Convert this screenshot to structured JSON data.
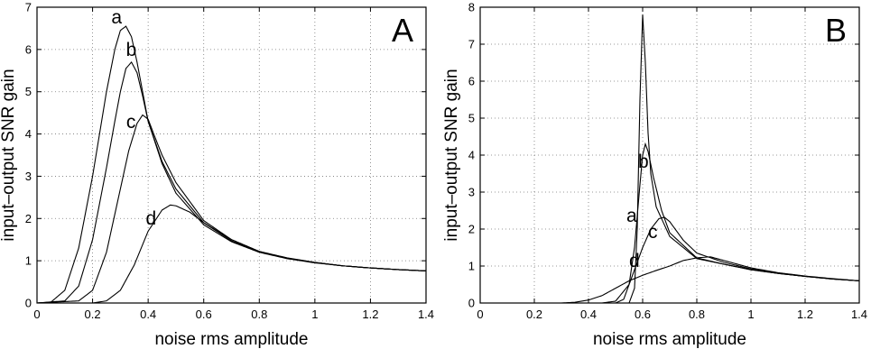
{
  "chart_data": [
    {
      "type": "line",
      "panel_letter": "A",
      "xlabel": "noise rms amplitude",
      "ylabel": "input–output SNR gain",
      "xlim": [
        0,
        1.4
      ],
      "ylim": [
        0,
        7
      ],
      "xticks": [
        "0",
        "0.2",
        "0.4",
        "0.6",
        "0.8",
        "1",
        "1.2",
        "1.4"
      ],
      "yticks": [
        "0",
        "1",
        "2",
        "3",
        "4",
        "5",
        "6",
        "7"
      ],
      "grid": true,
      "series": [
        {
          "name": "a",
          "x": [
            0,
            0.05,
            0.1,
            0.15,
            0.2,
            0.25,
            0.28,
            0.3,
            0.32,
            0.34,
            0.36,
            0.38,
            0.4,
            0.45,
            0.5,
            0.6,
            0.7,
            0.8,
            0.9,
            1.0,
            1.1,
            1.2,
            1.3,
            1.4
          ],
          "y": [
            0,
            0.02,
            0.3,
            1.3,
            3.0,
            5.0,
            6.0,
            6.45,
            6.55,
            6.3,
            5.7,
            5.0,
            4.3,
            3.3,
            2.6,
            1.85,
            1.45,
            1.2,
            1.05,
            0.95,
            0.88,
            0.83,
            0.79,
            0.76
          ]
        },
        {
          "name": "b",
          "x": [
            0,
            0.1,
            0.15,
            0.2,
            0.25,
            0.28,
            0.3,
            0.32,
            0.34,
            0.36,
            0.38,
            0.4,
            0.45,
            0.5,
            0.6,
            0.7,
            0.8,
            0.9,
            1.0,
            1.1,
            1.2,
            1.3,
            1.4
          ],
          "y": [
            0,
            0.05,
            0.4,
            1.5,
            3.2,
            4.3,
            5.0,
            5.55,
            5.7,
            5.45,
            4.9,
            4.3,
            3.35,
            2.7,
            1.9,
            1.47,
            1.21,
            1.06,
            0.96,
            0.88,
            0.83,
            0.79,
            0.76
          ]
        },
        {
          "name": "c",
          "x": [
            0,
            0.15,
            0.2,
            0.25,
            0.3,
            0.33,
            0.36,
            0.38,
            0.4,
            0.42,
            0.45,
            0.5,
            0.6,
            0.7,
            0.8,
            0.9,
            1.0,
            1.1,
            1.2,
            1.3,
            1.4
          ],
          "y": [
            0,
            0.05,
            0.3,
            1.2,
            2.7,
            3.6,
            4.25,
            4.45,
            4.35,
            4.0,
            3.5,
            2.85,
            1.95,
            1.5,
            1.22,
            1.07,
            0.96,
            0.88,
            0.83,
            0.79,
            0.76
          ]
        },
        {
          "name": "d",
          "x": [
            0,
            0.2,
            0.25,
            0.3,
            0.35,
            0.4,
            0.45,
            0.48,
            0.5,
            0.55,
            0.6,
            0.7,
            0.8,
            0.9,
            1.0,
            1.1,
            1.2,
            1.3,
            1.4
          ],
          "y": [
            0,
            0.0,
            0.05,
            0.3,
            0.9,
            1.7,
            2.2,
            2.32,
            2.3,
            2.15,
            1.9,
            1.5,
            1.22,
            1.06,
            0.96,
            0.88,
            0.83,
            0.79,
            0.76
          ]
        }
      ]
    },
    {
      "type": "line",
      "panel_letter": "B",
      "xlabel": "noise rms amplitude",
      "ylabel": "input–output SNR gain",
      "xlim": [
        0,
        1.4
      ],
      "ylim": [
        0,
        8
      ],
      "xticks": [
        "0",
        "0.2",
        "0.4",
        "0.6",
        "0.8",
        "1",
        "1.2",
        "1.4"
      ],
      "yticks": [
        "0",
        "1",
        "2",
        "3",
        "4",
        "5",
        "6",
        "7",
        "8"
      ],
      "grid": true,
      "series": [
        {
          "name": "a",
          "x": [
            0,
            0.5,
            0.55,
            0.57,
            0.58,
            0.59,
            0.6,
            0.61,
            0.62,
            0.63,
            0.65,
            0.7,
            0.8,
            0.9,
            1.0,
            1.1,
            1.2,
            1.3,
            1.4
          ],
          "y": [
            0,
            0,
            0.0,
            0.4,
            2.0,
            5.5,
            7.8,
            6.5,
            4.6,
            3.5,
            2.6,
            1.8,
            1.2,
            1.05,
            0.9,
            0.8,
            0.72,
            0.65,
            0.6
          ]
        },
        {
          "name": "b",
          "x": [
            0,
            0.5,
            0.53,
            0.55,
            0.57,
            0.59,
            0.6,
            0.61,
            0.62,
            0.64,
            0.67,
            0.7,
            0.8,
            0.9,
            1.0,
            1.1,
            1.2,
            1.3,
            1.4
          ],
          "y": [
            0,
            0.0,
            0.1,
            0.5,
            1.5,
            3.2,
            4.0,
            4.3,
            4.1,
            3.4,
            2.5,
            1.9,
            1.22,
            1.05,
            0.9,
            0.8,
            0.72,
            0.65,
            0.6
          ]
        },
        {
          "name": "c",
          "x": [
            0,
            0.45,
            0.5,
            0.55,
            0.6,
            0.63,
            0.66,
            0.68,
            0.7,
            0.75,
            0.8,
            0.9,
            1.0,
            1.1,
            1.2,
            1.3,
            1.4
          ],
          "y": [
            0,
            0.0,
            0.05,
            0.5,
            1.5,
            2.0,
            2.28,
            2.32,
            2.2,
            1.7,
            1.35,
            1.1,
            0.92,
            0.81,
            0.72,
            0.65,
            0.6
          ]
        },
        {
          "name": "d",
          "x": [
            0,
            0.3,
            0.35,
            0.4,
            0.45,
            0.5,
            0.55,
            0.6,
            0.65,
            0.7,
            0.75,
            0.8,
            0.85,
            0.9,
            1.0,
            1.1,
            1.2,
            1.3,
            1.4
          ],
          "y": [
            0,
            0.0,
            0.02,
            0.08,
            0.2,
            0.4,
            0.6,
            0.75,
            0.88,
            1.0,
            1.15,
            1.22,
            1.25,
            1.15,
            0.95,
            0.82,
            0.73,
            0.66,
            0.6
          ]
        }
      ]
    }
  ]
}
